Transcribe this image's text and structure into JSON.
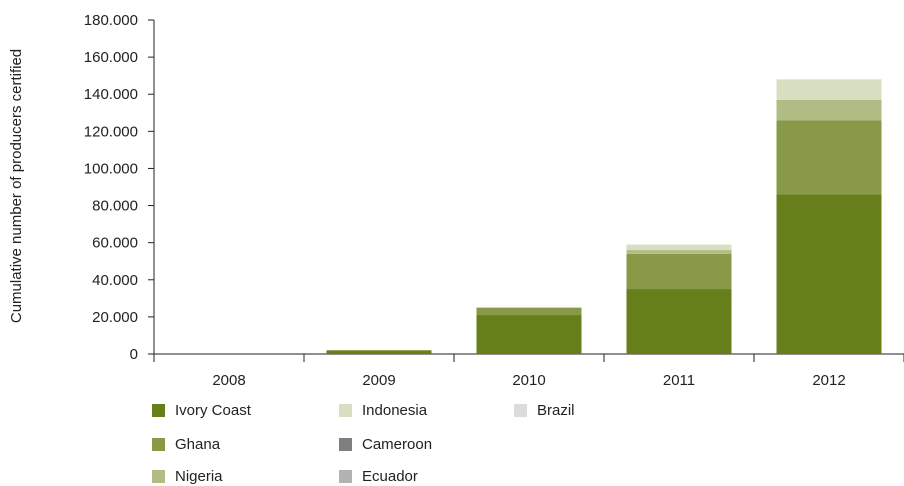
{
  "chart_data": {
    "type": "bar",
    "stacked": true,
    "title": "",
    "xlabel": "",
    "ylabel": "Cumulative number of producers certified",
    "ylim": [
      0,
      180000
    ],
    "yticks": [
      0,
      20000,
      40000,
      60000,
      80000,
      100000,
      120000,
      140000,
      160000,
      180000
    ],
    "ytick_labels": [
      "0",
      "20.000",
      "40.000",
      "60.000",
      "80.000",
      "100.000",
      "120.000",
      "140.000",
      "160.000",
      "180.000"
    ],
    "categories": [
      "2008",
      "2009",
      "2010",
      "2011",
      "2012"
    ],
    "series": [
      {
        "name": "Ivory Coast",
        "color": "#667f1a",
        "values": [
          0,
          2000,
          21000,
          35000,
          86000
        ]
      },
      {
        "name": "Ghana",
        "color": "#889a47",
        "values": [
          0,
          0,
          4000,
          19000,
          40000
        ]
      },
      {
        "name": "Nigeria",
        "color": "#afbd85",
        "values": [
          0,
          0,
          0,
          2000,
          11000
        ]
      },
      {
        "name": "Indonesia",
        "color": "#d8dfc0",
        "values": [
          0,
          0,
          0,
          3000,
          11000
        ]
      },
      {
        "name": "Cameroon",
        "color": "#7f7f7f",
        "values": [
          0,
          0,
          0,
          0,
          0
        ]
      },
      {
        "name": "Ecuador",
        "color": "#b2b2b2",
        "values": [
          0,
          0,
          0,
          0,
          0
        ]
      },
      {
        "name": "Brazil",
        "color": "#dcdcdc",
        "values": [
          0,
          0,
          0,
          0,
          0
        ]
      }
    ],
    "grid": false,
    "legend": "bottom"
  }
}
